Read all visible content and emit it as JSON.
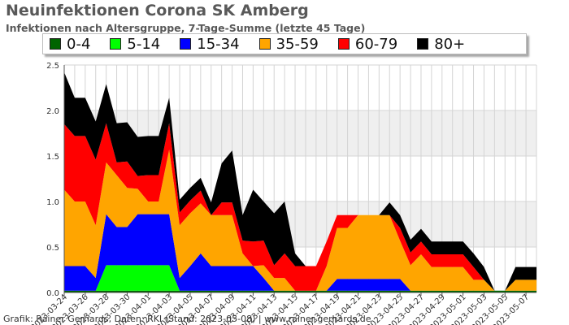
{
  "title": "Neuinfektionen Corona SK Amberg",
  "subtitle": "Infektionen nach Altersgruppe, 7-Tage-Summe (letzte 45 Tage)",
  "credit": "Grafik: Rainer Gerhards, Daten: RKI (Stand: 2023-05-08) | www.rainer-gerhards.de",
  "chart_data": {
    "type": "area",
    "stacked": true,
    "grid": true,
    "legend_position": "top",
    "ylim": [
      0,
      2.5
    ],
    "yticks": [
      0.0,
      0.5,
      1.0,
      1.5,
      2.0,
      2.5
    ],
    "ytick_labels": [
      "0.0",
      "0.5",
      "1.0",
      "1.5",
      "2.0",
      "2.5"
    ],
    "x_tick_labels": [
      "2023-03-24",
      "2023-03-26",
      "2023-03-28",
      "2023-03-30",
      "2023-04-01",
      "2023-04-03",
      "2023-04-05",
      "2023-04-07",
      "2023-04-09",
      "2023-04-11",
      "2023-04-13",
      "2023-04-15",
      "2023-04-17",
      "2023-04-19",
      "2023-04-21",
      "2023-04-23",
      "2023-04-25",
      "2023-04-27",
      "2023-04-29",
      "2023-05-01",
      "2023-05-03",
      "2023-05-05",
      "2023-05-07"
    ],
    "x": [
      "2023-03-24",
      "2023-03-25",
      "2023-03-26",
      "2023-03-27",
      "2023-03-28",
      "2023-03-29",
      "2023-03-30",
      "2023-03-31",
      "2023-04-01",
      "2023-04-02",
      "2023-04-03",
      "2023-04-04",
      "2023-04-05",
      "2023-04-06",
      "2023-04-07",
      "2023-04-08",
      "2023-04-09",
      "2023-04-10",
      "2023-04-11",
      "2023-04-12",
      "2023-04-13",
      "2023-04-14",
      "2023-04-15",
      "2023-04-16",
      "2023-04-17",
      "2023-04-18",
      "2023-04-19",
      "2023-04-20",
      "2023-04-21",
      "2023-04-22",
      "2023-04-23",
      "2023-04-24",
      "2023-04-25",
      "2023-04-26",
      "2023-04-27",
      "2023-04-28",
      "2023-04-29",
      "2023-04-30",
      "2023-05-01",
      "2023-05-02",
      "2023-05-03",
      "2023-05-04",
      "2023-05-05",
      "2023-05-06",
      "2023-05-07",
      "2023-05-08"
    ],
    "series": [
      {
        "name": "0-4",
        "color": "#006400",
        "values": [
          0.02,
          0.02,
          0.02,
          0.02,
          0.02,
          0.02,
          0.02,
          0.02,
          0.02,
          0.02,
          0.02,
          0.02,
          0.02,
          0.02,
          0.02,
          0.02,
          0.02,
          0.02,
          0.02,
          0.02,
          0.02,
          0.02,
          0.02,
          0.02,
          0.02,
          0.02,
          0.02,
          0.02,
          0.02,
          0.02,
          0.02,
          0.02,
          0.02,
          0.02,
          0.02,
          0.02,
          0.02,
          0.02,
          0.02,
          0.02,
          0.02,
          0.02,
          0.02,
          0.02,
          0.02,
          0.02
        ]
      },
      {
        "name": "5-14",
        "color": "#00ff00",
        "values": [
          0,
          0,
          0,
          0,
          0.28,
          0.28,
          0.28,
          0.28,
          0.28,
          0.28,
          0.28,
          0,
          0,
          0,
          0,
          0,
          0,
          0,
          0,
          0,
          0,
          0,
          0,
          0,
          0,
          0,
          0,
          0,
          0,
          0,
          0,
          0,
          0,
          0,
          0,
          0,
          0,
          0,
          0,
          0,
          0,
          0,
          0,
          0,
          0,
          0
        ]
      },
      {
        "name": "15-34",
        "color": "#0000ff",
        "values": [
          0.27,
          0.27,
          0.27,
          0.14,
          0.56,
          0.42,
          0.42,
          0.56,
          0.56,
          0.56,
          0.56,
          0.14,
          0.27,
          0.41,
          0.27,
          0.27,
          0.27,
          0.27,
          0.27,
          0.14,
          0,
          0,
          0,
          0,
          0,
          0,
          0.13,
          0.13,
          0.13,
          0.13,
          0.13,
          0.13,
          0.13,
          0,
          0,
          0,
          0,
          0,
          0,
          0,
          0,
          0,
          0,
          0,
          0,
          0
        ]
      },
      {
        "name": "35-59",
        "color": "#ffa500",
        "values": [
          0.84,
          0.71,
          0.71,
          0.58,
          0.57,
          0.57,
          0.43,
          0.28,
          0.14,
          0.14,
          0.71,
          0.58,
          0.58,
          0.55,
          0.56,
          0.56,
          0.56,
          0.14,
          0,
          0.14,
          0.14,
          0.14,
          0,
          0,
          0,
          0.27,
          0.56,
          0.56,
          0.7,
          0.7,
          0.7,
          0.7,
          0.42,
          0.28,
          0.4,
          0.26,
          0.26,
          0.26,
          0.26,
          0.12,
          0.12,
          0,
          0,
          0.12,
          0.12,
          0.12
        ]
      },
      {
        "name": "60-79",
        "color": "#ff0000",
        "values": [
          0.72,
          0.72,
          0.72,
          0.72,
          0.43,
          0.14,
          0.29,
          0.14,
          0.29,
          0.29,
          0.29,
          0.14,
          0.14,
          0.14,
          0,
          0.14,
          0.14,
          0.14,
          0.27,
          0.27,
          0.14,
          0.27,
          0.27,
          0.27,
          0.27,
          0.27,
          0.14,
          0.14,
          0,
          0,
          0,
          0,
          0.14,
          0.14,
          0.14,
          0.14,
          0.14,
          0.14,
          0.14,
          0.14,
          0,
          0,
          0,
          0,
          0,
          0
        ]
      },
      {
        "name": "80+",
        "color": "#000000",
        "values": [
          0.57,
          0.42,
          0.42,
          0.42,
          0.43,
          0.43,
          0.43,
          0.43,
          0.43,
          0.43,
          0.28,
          0.14,
          0.14,
          0.14,
          0.14,
          0.43,
          0.57,
          0.28,
          0.57,
          0.43,
          0.57,
          0.57,
          0.14,
          0,
          0,
          0,
          0,
          0,
          0,
          0,
          0,
          0.14,
          0.14,
          0.14,
          0.14,
          0.14,
          0.14,
          0.14,
          0.14,
          0.15,
          0.14,
          0,
          0,
          0.14,
          0.14,
          0.14
        ]
      }
    ]
  }
}
